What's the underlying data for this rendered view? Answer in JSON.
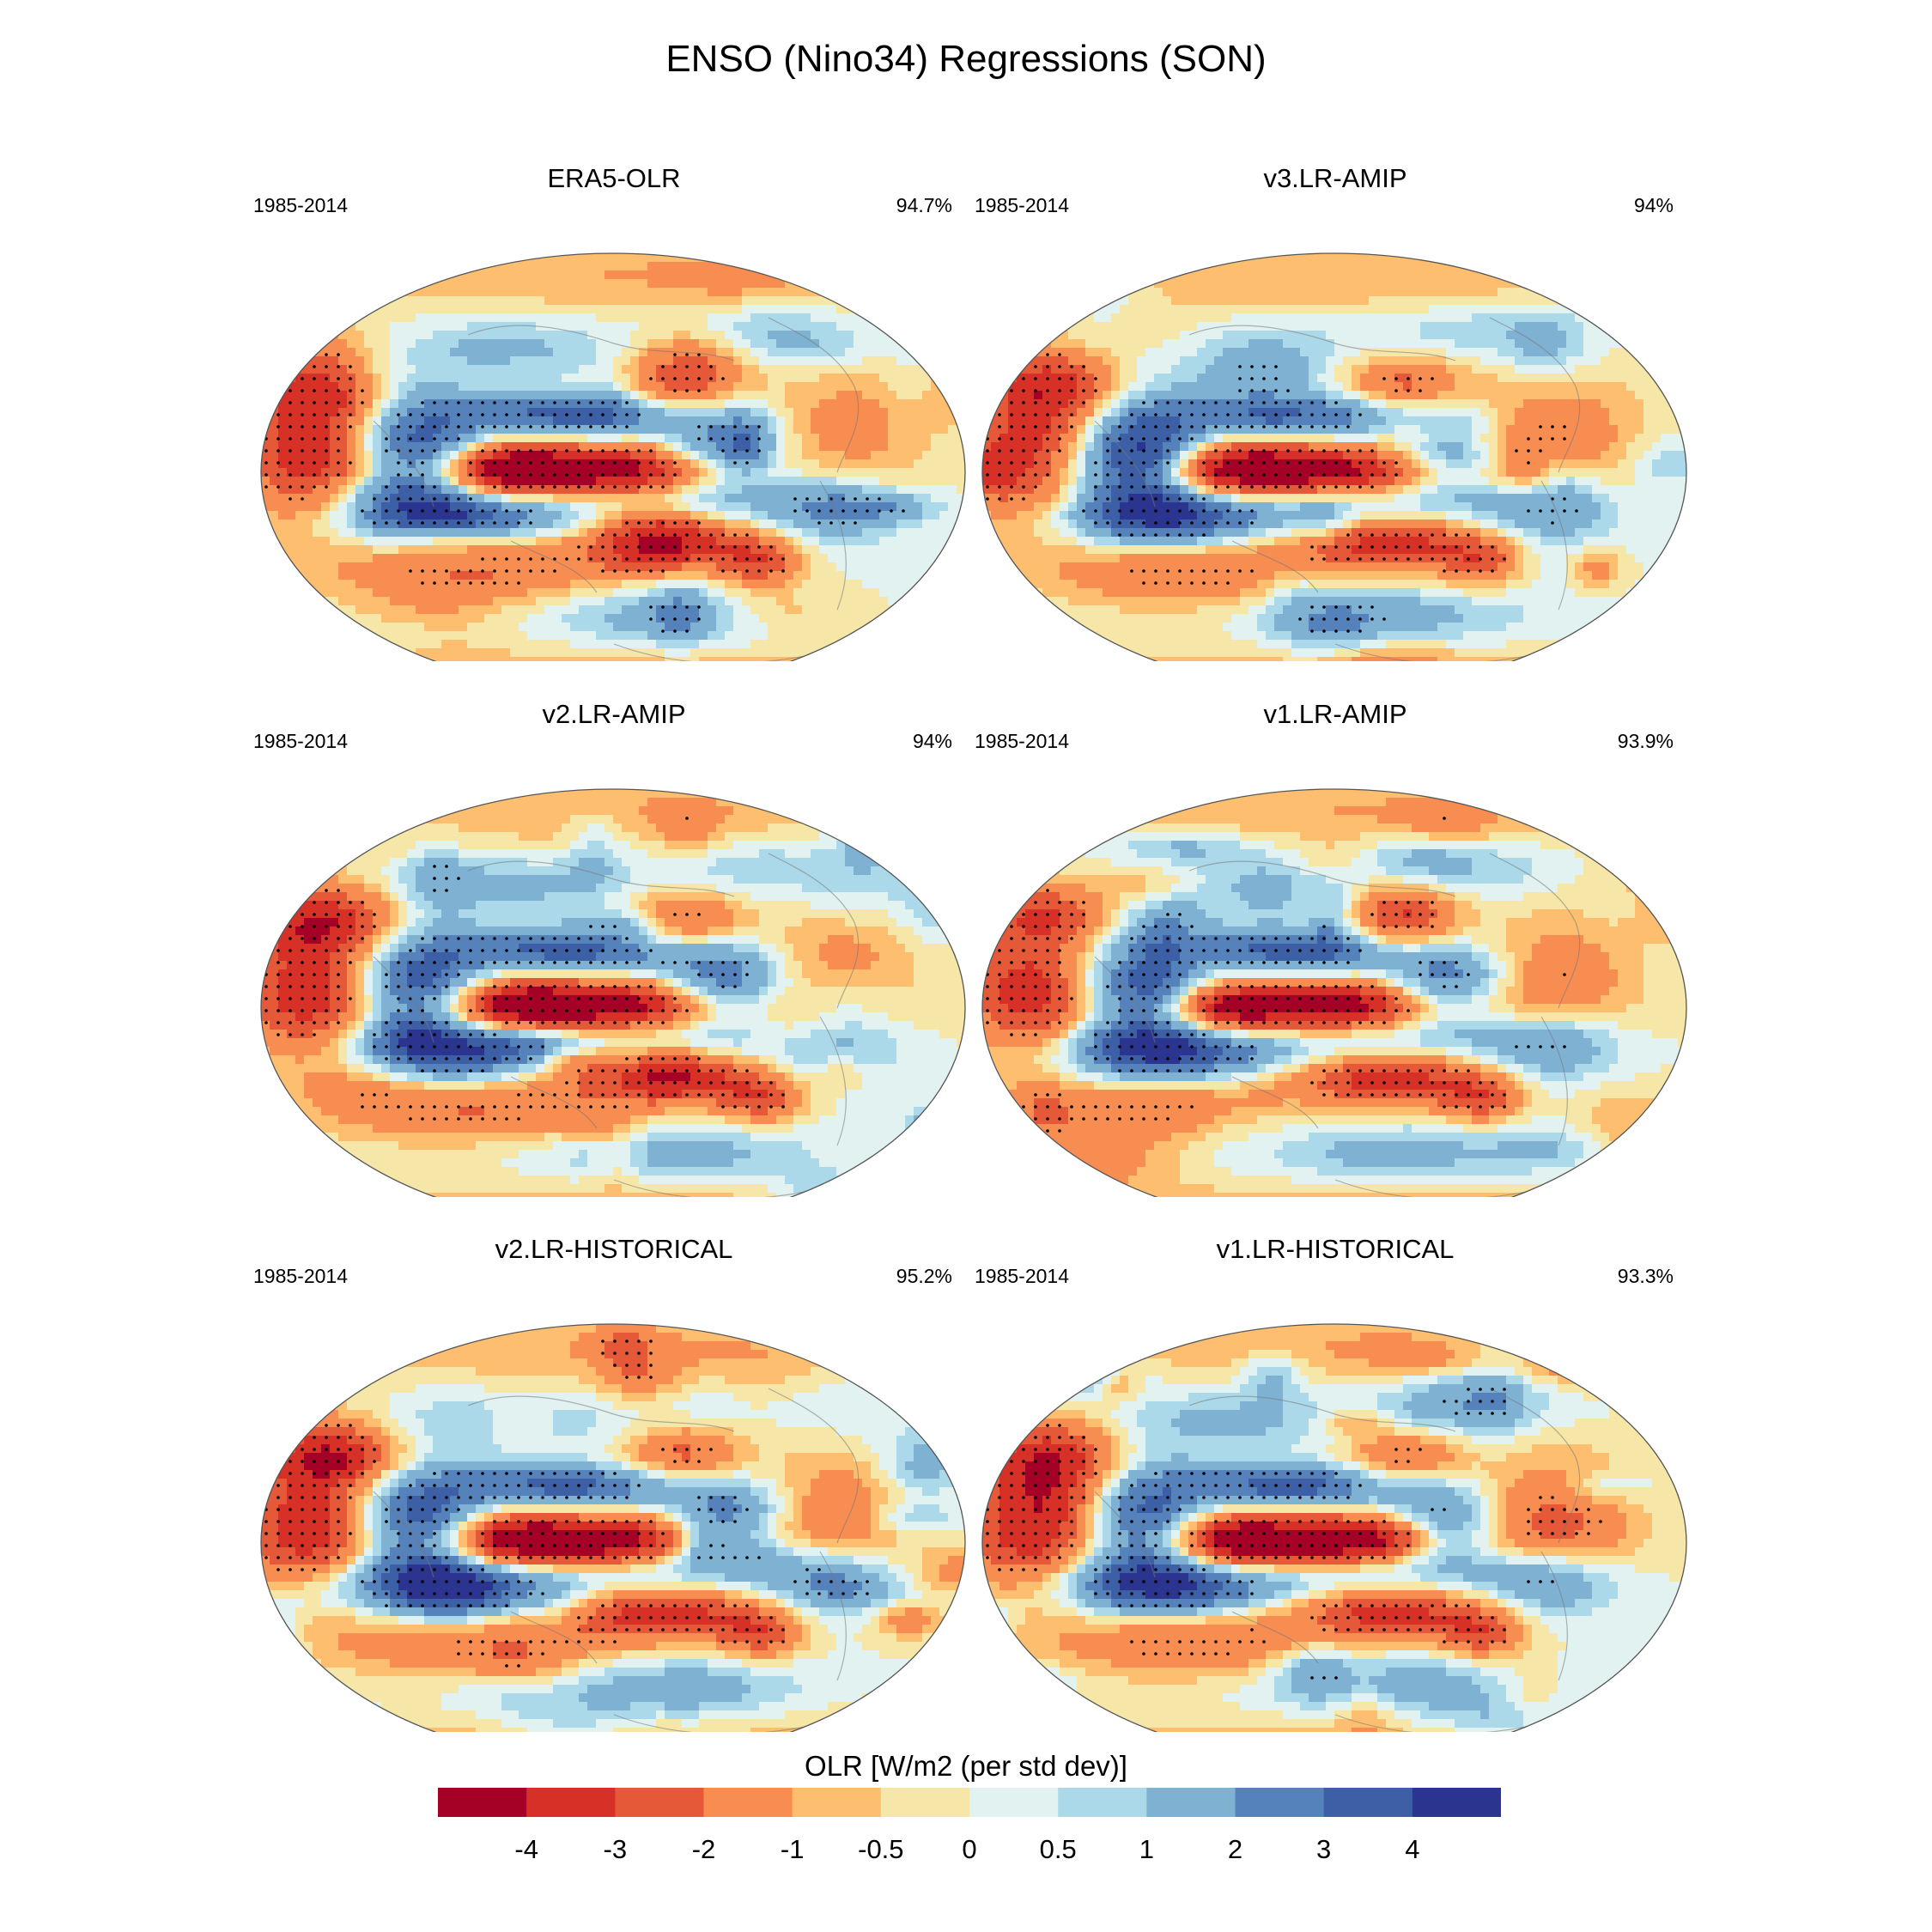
{
  "title": "ENSO (Nino34) Regressions (SON)",
  "colorbar": {
    "label": "OLR [W/m2 (per std dev)]",
    "colors": [
      "#a50026",
      "#d73027",
      "#e55838",
      "#f88d52",
      "#fdbf6f",
      "#f6e7a8",
      "#e2f2f0",
      "#abd9e9",
      "#7fb1d3",
      "#5682bb",
      "#3c5fa6",
      "#2b3590"
    ],
    "ticks": [
      "-4",
      "-3",
      "-2",
      "-1",
      "-0.5",
      "0",
      "0.5",
      "1",
      "2",
      "3",
      "4"
    ]
  },
  "panels": [
    {
      "title": "ERA5-OLR",
      "period": "1985-2014",
      "pct": "94.7%"
    },
    {
      "title": "v3.LR-AMIP",
      "period": "1985-2014",
      "pct": "94%"
    },
    {
      "title": "v2.LR-AMIP",
      "period": "1985-2014",
      "pct": "94%"
    },
    {
      "title": "v1.LR-AMIP",
      "period": "1985-2014",
      "pct": "93.9%"
    },
    {
      "title": "v2.LR-HISTORICAL",
      "period": "1985-2014",
      "pct": "95.2%"
    },
    {
      "title": "v1.LR-HISTORICAL",
      "period": "1985-2014",
      "pct": "93.3%"
    }
  ],
  "chart_data": {
    "type": "heatmap",
    "title": "ENSO (Nino34) Regressions (SON)",
    "variable": "OLR",
    "units": "W/m2 (per std dev)",
    "levels": [
      -4,
      -3,
      -2,
      -1,
      -0.5,
      0,
      0.5,
      1,
      2,
      3,
      4
    ],
    "maps": [
      {
        "name": "ERA5-OLR",
        "period": "1985-2014",
        "pattern_correlation": "94.7%"
      },
      {
        "name": "v3.LR-AMIP",
        "period": "1985-2014",
        "pattern_correlation": "94%"
      },
      {
        "name": "v2.LR-AMIP",
        "period": "1985-2014",
        "pattern_correlation": "94%"
      },
      {
        "name": "v1.LR-AMIP",
        "period": "1985-2014",
        "pattern_correlation": "93.9%"
      },
      {
        "name": "v2.LR-HISTORICAL",
        "period": "1985-2014",
        "pattern_correlation": "95.2%"
      },
      {
        "name": "v1.LR-HISTORICAL",
        "period": "1985-2014",
        "pattern_correlation": "93.3%"
      }
    ]
  }
}
